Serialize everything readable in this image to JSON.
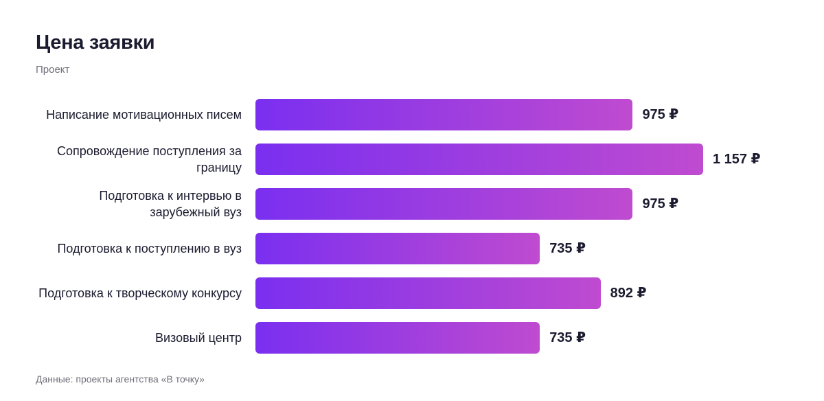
{
  "chart_data": {
    "type": "bar",
    "orientation": "horizontal",
    "title": "Цена заявки",
    "subtitle": "Проект",
    "categories": [
      "Написание мотивационных писем",
      "Сопровождение поступления за границу",
      "Подготовка к интервью в зарубежный вуз",
      "Подготовка к поступлению в вуз",
      "Подготовка к творческому конкурсу",
      "Визовый центр"
    ],
    "values": [
      975,
      1157,
      975,
      735,
      892,
      735
    ],
    "value_labels": [
      "975 ₽",
      "1 157 ₽",
      "975 ₽",
      "735 ₽",
      "892 ₽",
      "735 ₽"
    ],
    "color": [
      "#7a2ff0",
      "#bf4bd0"
    ],
    "note": "Данные: проекты агентства «В точку»"
  }
}
